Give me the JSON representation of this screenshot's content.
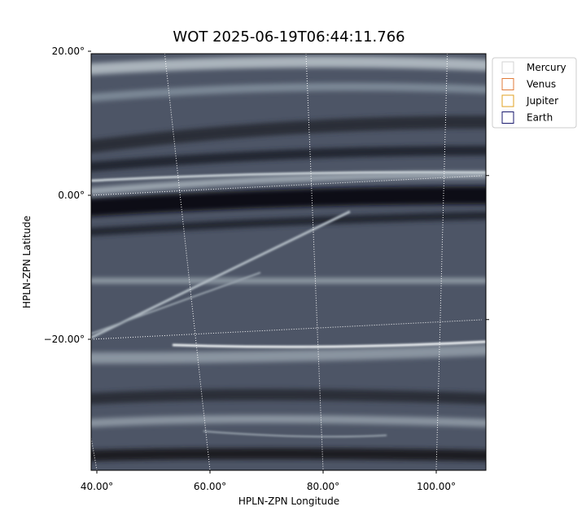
{
  "chart_data": {
    "type": "image",
    "title": "WOT 2025-06-19T06:44:11.766",
    "xlabel": "HPLN-ZPN Longitude",
    "ylabel": "HPLN-ZPN Latitude",
    "xticks": [
      {
        "value": 40,
        "label": "40.00°"
      },
      {
        "value": 60,
        "label": "60.00°"
      },
      {
        "value": 80,
        "label": "80.00°"
      },
      {
        "value": 100,
        "label": "100.00°"
      }
    ],
    "yticks": [
      {
        "value": 20,
        "label": "20.00°"
      },
      {
        "value": 0,
        "label": "0.00°"
      },
      {
        "value": -20,
        "label": "−20.00°"
      }
    ],
    "grid": true,
    "legend_position": "outside-upper-right",
    "series": [
      {
        "name": "Mercury",
        "color": "#d3d3d3"
      },
      {
        "name": "Venus",
        "color": "#e07b39"
      },
      {
        "name": "Jupiter",
        "color": "#e0a020"
      },
      {
        "name": "Earth",
        "color": "#1a1a6e"
      }
    ]
  }
}
